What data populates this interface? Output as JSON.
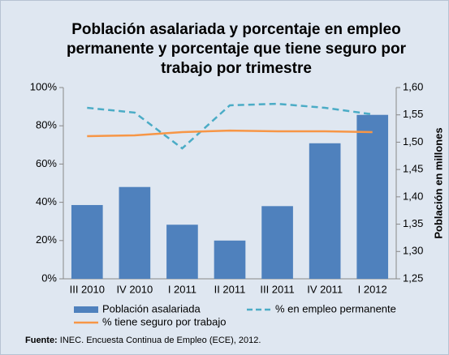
{
  "chart_data": {
    "type": "bar-line",
    "title": "Población asalariada y porcentaje en empleo permanente y porcentaje que tiene seguro por trabajo por trimestre",
    "y2_label": "Población en millones",
    "categories": [
      "III 2010",
      "IV 2010",
      "I 2011",
      "II 2011",
      "III 2011",
      "IV 2011",
      "I 2012"
    ],
    "series": [
      {
        "name": "Población asalariada",
        "type": "bar",
        "axis": "y2",
        "color": "#4f81bd",
        "values": [
          1.385,
          1.418,
          1.349,
          1.32,
          1.383,
          1.498,
          1.55
        ]
      },
      {
        "name": "% en empleo permanente",
        "type": "line",
        "dashed": true,
        "color": "#4bacc6",
        "values": [
          89.4,
          86.9,
          68.2,
          90.7,
          91.5,
          89.4,
          86
        ]
      },
      {
        "name": "% tiene seguro por trabajo",
        "type": "line",
        "color": "#f79646",
        "values": [
          74.6,
          75,
          76.7,
          77.5,
          77.1,
          77.1,
          76.7
        ]
      }
    ],
    "ylim": [
      0,
      100
    ],
    "yticks": [
      {
        "value": 0,
        "label": "0%"
      },
      {
        "value": 20,
        "label": "20%"
      },
      {
        "value": 40,
        "label": "40%"
      },
      {
        "value": 60,
        "label": "60%"
      },
      {
        "value": 80,
        "label": "80%"
      },
      {
        "value": 100,
        "label": "100%"
      }
    ],
    "y2lim": [
      1.25,
      1.6
    ],
    "y2ticks": [
      {
        "value": 1.25,
        "label": "1,25"
      },
      {
        "value": 1.3,
        "label": "1,30"
      },
      {
        "value": 1.35,
        "label": "1,35"
      },
      {
        "value": 1.4,
        "label": "1,40"
      },
      {
        "value": 1.45,
        "label": "1,45"
      },
      {
        "value": 1.5,
        "label": "1,50"
      },
      {
        "value": 1.55,
        "label": "1,55"
      },
      {
        "value": 1.6,
        "label": "1,60"
      }
    ],
    "legend": "bottom",
    "source_label": "Fuente:",
    "source_text": "INEC. Encuesta Continua de Empleo (ECE), 2012."
  }
}
